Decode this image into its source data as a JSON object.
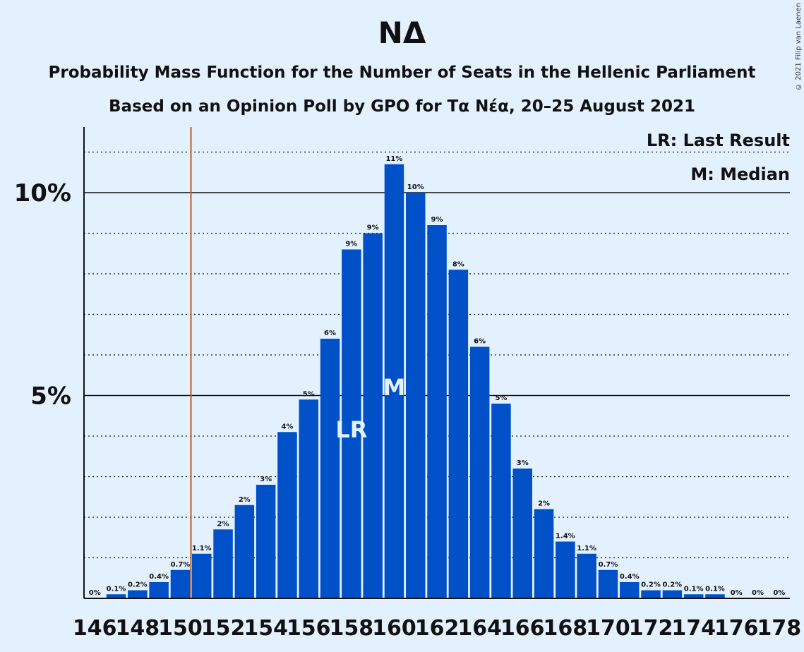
{
  "title": "ΝΔ",
  "subtitle1": "Probability Mass Function for the Number of Seats in the Hellenic Parliament",
  "subtitle2": "Based on an Opinion Poll by GPO for Τα Νέα, 20–25 August 2021",
  "copyright": "© 2021 Filip van Laenen",
  "legend": {
    "last_result": "LR: Last Result",
    "median": "M: Median"
  },
  "colors": {
    "bar": "#0050c8",
    "last_result_line": "#c05a1e",
    "background": "#e3f1fe"
  },
  "chart_data": {
    "type": "bar",
    "x": [
      146,
      147,
      148,
      149,
      150,
      151,
      152,
      153,
      154,
      155,
      156,
      157,
      158,
      159,
      160,
      161,
      162,
      163,
      164,
      165,
      166,
      167,
      168,
      169,
      170,
      171,
      172,
      173,
      174,
      175,
      176,
      177,
      178
    ],
    "values": [
      0.0,
      0.1,
      0.2,
      0.4,
      0.7,
      1.1,
      1.7,
      2.3,
      2.8,
      4.1,
      4.9,
      6.4,
      8.6,
      9.0,
      10.7,
      10.0,
      9.2,
      8.1,
      6.2,
      4.8,
      3.2,
      2.2,
      1.4,
      1.1,
      0.7,
      0.4,
      0.2,
      0.2,
      0.1,
      0.1,
      0.0,
      0.0,
      0.0
    ],
    "data_labels": [
      "0%",
      "0.1%",
      "0.2%",
      "0.4%",
      "0.7%",
      "1.1%",
      "2%",
      "2%",
      "3%",
      "4%",
      "5%",
      "6%",
      "9%",
      "9%",
      "11%",
      "10%",
      "9%",
      "8%",
      "6%",
      "5%",
      "3%",
      "2%",
      "1.4%",
      "1.1%",
      "0.7%",
      "0.4%",
      "0.2%",
      "0.2%",
      "0.1%",
      "0.1%",
      "0%",
      "0%",
      "0%"
    ],
    "x_tick_labels": [
      "146",
      "148",
      "150",
      "152",
      "154",
      "156",
      "158",
      "160",
      "162",
      "164",
      "166",
      "168",
      "170",
      "172",
      "174",
      "176",
      "178"
    ],
    "x_tick_values": [
      146,
      148,
      150,
      152,
      154,
      156,
      158,
      160,
      162,
      164,
      166,
      168,
      170,
      172,
      174,
      176,
      178
    ],
    "y_tick_labels": [
      "5%",
      "10%"
    ],
    "y_tick_values": [
      5,
      10
    ],
    "ylim": [
      0,
      11.6
    ],
    "gridlines_minor": [
      1,
      2,
      3,
      4,
      6,
      7,
      8,
      9,
      11
    ],
    "last_result": 158,
    "last_result_label": "LR",
    "median": 160,
    "median_label": "M",
    "majority_line_seat": 151
  }
}
